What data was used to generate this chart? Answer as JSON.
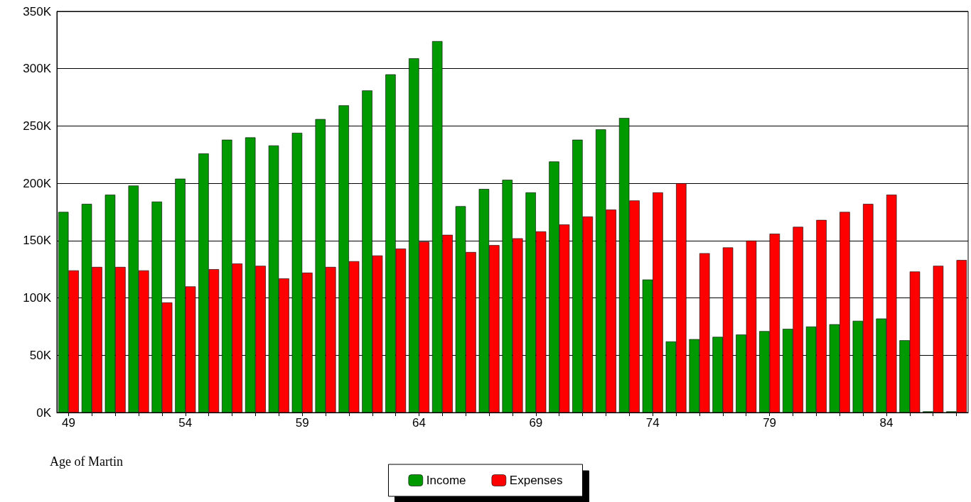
{
  "chart_data": {
    "type": "bar",
    "xlabel": "Age of Martin",
    "categories": [
      "49",
      null,
      null,
      null,
      null,
      "54",
      null,
      null,
      null,
      null,
      "59",
      null,
      null,
      null,
      null,
      "64",
      null,
      null,
      null,
      null,
      "69",
      null,
      null,
      null,
      null,
      "74",
      null,
      null,
      null,
      null,
      "79",
      null,
      null,
      null,
      null,
      "84",
      null,
      null,
      null
    ],
    "series": [
      {
        "name": "Income",
        "color": "#009900",
        "values": [
          175,
          182,
          190,
          198,
          184,
          204,
          226,
          238,
          240,
          233,
          244,
          256,
          268,
          281,
          295,
          309,
          324,
          180,
          195,
          203,
          192,
          219,
          238,
          247,
          257,
          116,
          62,
          64,
          66,
          68,
          71,
          73,
          75,
          77,
          80,
          82,
          63,
          1,
          1
        ]
      },
      {
        "name": "Expenses",
        "color": "#ff0000",
        "values": [
          124,
          127,
          127,
          124,
          96,
          110,
          125,
          130,
          128,
          117,
          122,
          127,
          132,
          137,
          143,
          149,
          155,
          140,
          146,
          152,
          158,
          164,
          171,
          177,
          185,
          192,
          200,
          139,
          144,
          150,
          156,
          162,
          168,
          175,
          182,
          190,
          123,
          128,
          133
        ]
      }
    ],
    "ylim": [
      0,
      350
    ],
    "yticks": [
      {
        "value": 0,
        "label": "0K"
      },
      {
        "value": 50,
        "label": "50K"
      },
      {
        "value": 100,
        "label": "100K"
      },
      {
        "value": 150,
        "label": "150K"
      },
      {
        "value": 200,
        "label": "200K"
      },
      {
        "value": 250,
        "label": "250K"
      },
      {
        "value": 300,
        "label": "300K"
      },
      {
        "value": 350,
        "label": "350K"
      }
    ],
    "grid": "y",
    "legend": "bottom"
  }
}
